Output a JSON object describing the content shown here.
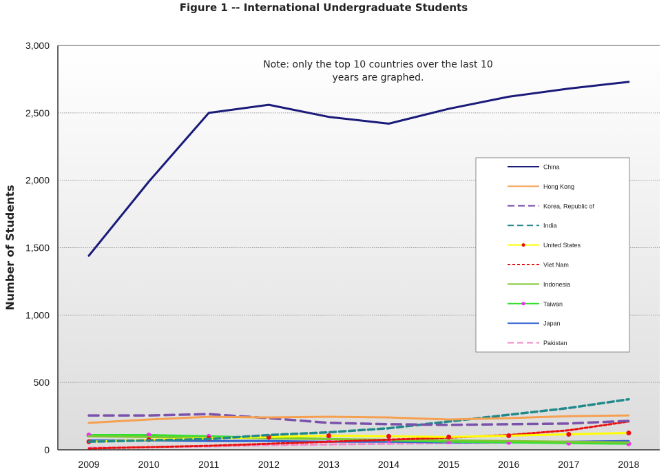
{
  "title": "Figure 1 -- International Undergraduate Students",
  "note": "Note:  only the top 10 countries over the last 10 years are graphed.",
  "note_lines": [
    "Note:  only the top 10 countries over the last 10",
    "years are graphed."
  ],
  "chart_data": {
    "type": "line",
    "title": "Figure 1 -- International Undergraduate Students",
    "xlabel": "",
    "ylabel": "Number of Students",
    "x": [
      "2009",
      "2010",
      "2011",
      "2012",
      "2013",
      "2014",
      "2015",
      "2016",
      "2017",
      "2018"
    ],
    "ylim": [
      0,
      3000
    ],
    "yticks": [
      0,
      500,
      1000,
      1500,
      2000,
      2500,
      3000
    ],
    "ytick_labels": [
      "0",
      "500",
      "1,000",
      "1,500",
      "2,000",
      "2,500",
      "3,000"
    ],
    "grid": true,
    "legend_position": "right",
    "series": [
      {
        "name": "China",
        "color": "#1a1a7a",
        "dash": "solid",
        "values": [
          1440,
          1990,
          2500,
          2560,
          2470,
          2420,
          2530,
          2620,
          2680,
          2730
        ]
      },
      {
        "name": "Hong Kong",
        "color": "#f5a050",
        "dash": "solid",
        "values": [
          200,
          225,
          245,
          240,
          245,
          240,
          225,
          235,
          250,
          255
        ]
      },
      {
        "name": "Korea, Republic of",
        "color": "#7b52ab",
        "dash": "long-dash",
        "values": [
          255,
          255,
          265,
          235,
          200,
          190,
          185,
          190,
          195,
          215
        ]
      },
      {
        "name": "India",
        "color": "#22898a",
        "dash": "dash",
        "values": [
          60,
          70,
          80,
          110,
          130,
          160,
          210,
          260,
          310,
          375
        ]
      },
      {
        "name": "United States",
        "color": "#ffff00",
        "dash": "solid",
        "marker": "#e81010",
        "values": [
          60,
          75,
          85,
          95,
          105,
          100,
          95,
          105,
          115,
          125
        ]
      },
      {
        "name": "Viet Nam",
        "color": "#e81010",
        "dash": "dot",
        "values": [
          10,
          20,
          30,
          45,
          60,
          75,
          90,
          110,
          145,
          210
        ]
      },
      {
        "name": "Indonesia",
        "color": "#7dc832",
        "dash": "solid",
        "values": [
          100,
          95,
          90,
          85,
          80,
          75,
          70,
          65,
          60,
          55
        ]
      },
      {
        "name": "Taiwan",
        "color": "#32e032",
        "dash": "solid",
        "marker": "#e832e8",
        "values": [
          110,
          110,
          100,
          90,
          80,
          70,
          60,
          55,
          50,
          45
        ]
      },
      {
        "name": "Japan",
        "color": "#3264d2",
        "dash": "solid",
        "values": [
          70,
          70,
          65,
          65,
          60,
          60,
          55,
          55,
          60,
          65
        ]
      },
      {
        "name": "Pakistan",
        "color": "#f08cc8",
        "dash": "dash",
        "values": [
          15,
          20,
          25,
          35,
          40,
          45,
          50,
          55,
          60,
          65
        ]
      }
    ]
  }
}
